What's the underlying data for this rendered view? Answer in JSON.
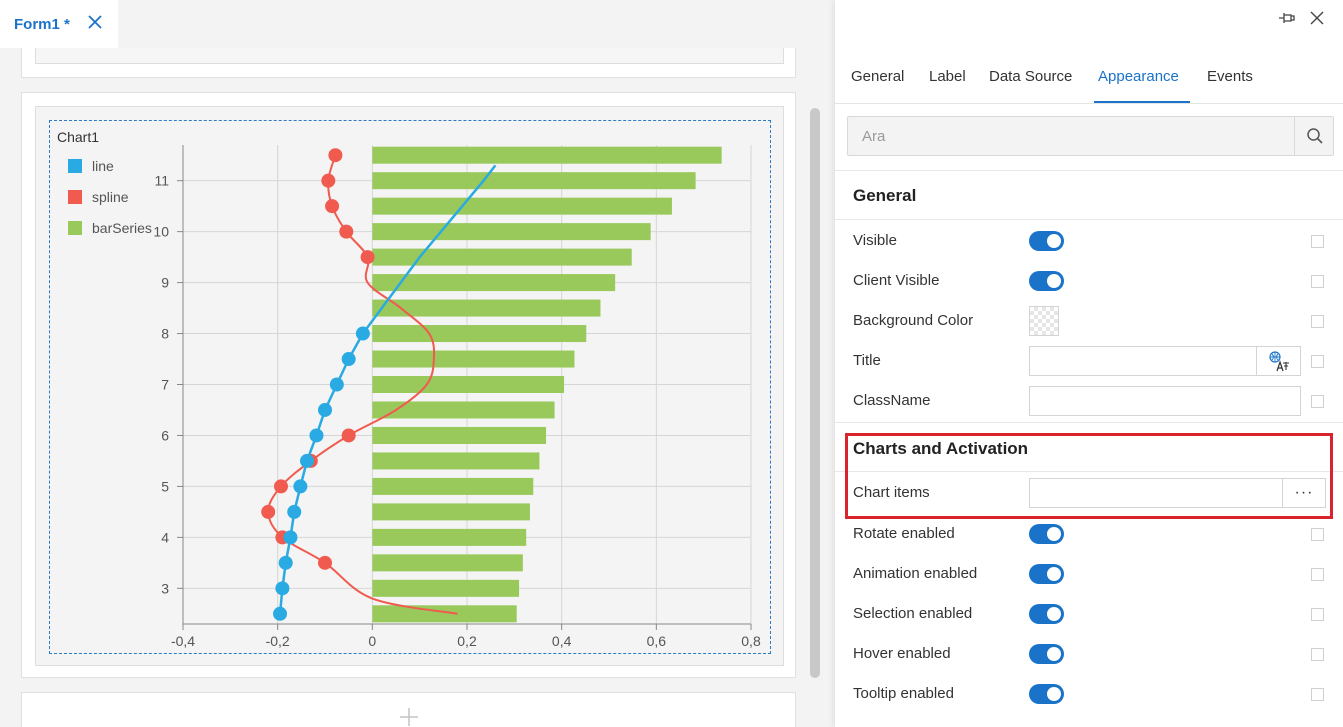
{
  "tab": {
    "label": "Form1 *"
  },
  "chart": {
    "title": "Chart1"
  },
  "chart_data": {
    "type": "bar",
    "orientation": "horizontal",
    "title": "Chart1",
    "xlim": [
      -0.4,
      0.8
    ],
    "ylim": [
      2.3,
      11.7
    ],
    "x_ticks": [
      "-0,4",
      "-0,2",
      "0",
      "0,2",
      "0,4",
      "0,6",
      "0,8"
    ],
    "y_ticks": [
      "3",
      "4",
      "5",
      "6",
      "7",
      "8",
      "9",
      "10",
      "11"
    ],
    "grid": true,
    "legend_position": "top-left",
    "series": [
      {
        "name": "line",
        "type": "line",
        "color": "#29aae2",
        "points": [
          [
            -0.195,
            2.5
          ],
          [
            -0.19,
            3.0
          ],
          [
            -0.183,
            3.5
          ],
          [
            -0.173,
            4.0
          ],
          [
            -0.165,
            4.5
          ],
          [
            -0.152,
            5.0
          ],
          [
            -0.138,
            5.5
          ],
          [
            -0.118,
            6.0
          ],
          [
            -0.1,
            6.5
          ],
          [
            -0.075,
            7.0
          ],
          [
            -0.05,
            7.5
          ],
          [
            -0.02,
            8.0
          ],
          [
            0.02,
            8.5
          ],
          [
            0.06,
            9.0
          ],
          [
            0.1,
            9.5
          ],
          [
            0.145,
            10.0
          ],
          [
            0.19,
            10.5
          ],
          [
            0.235,
            11.0
          ],
          [
            0.26,
            11.3
          ]
        ]
      },
      {
        "name": "spline",
        "type": "spline",
        "color": "#f05a4f",
        "points": [
          [
            0.18,
            2.5
          ],
          [
            0.0,
            2.8
          ],
          [
            -0.1,
            3.5
          ],
          [
            -0.19,
            4.0
          ],
          [
            -0.22,
            4.5
          ],
          [
            -0.193,
            5.0
          ],
          [
            -0.13,
            5.5
          ],
          [
            -0.05,
            6.0
          ],
          [
            0.05,
            6.5
          ],
          [
            0.115,
            7.0
          ],
          [
            0.13,
            7.5
          ],
          [
            0.12,
            8.0
          ],
          [
            0.06,
            8.5
          ],
          [
            -0.01,
            9.0
          ],
          [
            -0.01,
            9.5
          ],
          [
            -0.055,
            10.0
          ],
          [
            -0.085,
            10.5
          ],
          [
            -0.093,
            11.0
          ],
          [
            -0.078,
            11.5
          ]
        ],
        "markers": [
          [
            -0.1,
            3.5
          ],
          [
            -0.19,
            4.0
          ],
          [
            -0.22,
            4.5
          ],
          [
            -0.193,
            5.0
          ],
          [
            -0.13,
            5.5
          ],
          [
            -0.05,
            6.0
          ],
          [
            -0.01,
            9.5
          ],
          [
            -0.055,
            10.0
          ],
          [
            -0.085,
            10.5
          ],
          [
            -0.093,
            11.0
          ],
          [
            -0.078,
            11.5
          ]
        ]
      },
      {
        "name": "barSeries",
        "type": "bar",
        "color": "#99c95b",
        "y": [
          2.5,
          3.0,
          3.5,
          4.0,
          4.5,
          5.0,
          5.5,
          6.0,
          6.5,
          7.0,
          7.5,
          8.0,
          8.5,
          9.0,
          9.5,
          10.0,
          10.5,
          11.0,
          11.5
        ],
        "values": [
          0.305,
          0.31,
          0.318,
          0.325,
          0.333,
          0.34,
          0.353,
          0.367,
          0.385,
          0.405,
          0.427,
          0.452,
          0.482,
          0.513,
          0.548,
          0.588,
          0.633,
          0.683,
          0.738
        ]
      }
    ]
  },
  "props": {
    "tabs": [
      "General",
      "Label",
      "Data Source",
      "Appearance",
      "Events"
    ],
    "active_tab": "Appearance",
    "search_placeholder": "Ara",
    "general_section": "General",
    "general_rows": {
      "visible": "Visible",
      "client_visible": "Client Visible",
      "background_color": "Background Color",
      "title": "Title",
      "class_name": "ClassName"
    },
    "charts_section": "Charts and Activation",
    "charts_rows": {
      "chart_items": "Chart items",
      "chart_items_more": "···",
      "rotate": "Rotate enabled",
      "animation": "Animation enabled",
      "selection": "Selection enabled",
      "hover": "Hover enabled",
      "tooltip": "Tooltip enabled"
    },
    "accent_color": "#1a73c9",
    "highlight_color": "#d9232d"
  }
}
